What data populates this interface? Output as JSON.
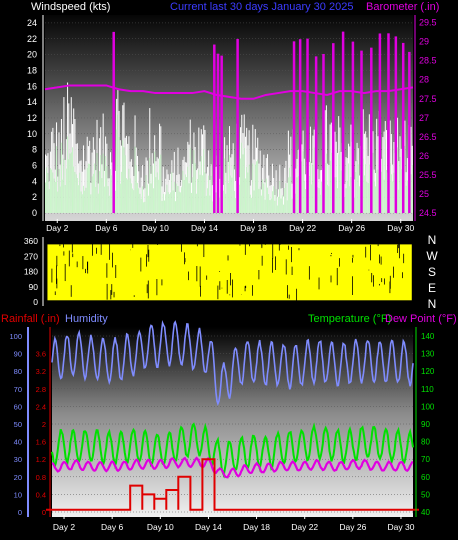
{
  "header": {
    "left": "Windspeed (kts)",
    "center": "Current last 30 days January 30 2025",
    "right": "Barometer (.in)"
  },
  "wind_dir_labels": [
    "N",
    "W",
    "S",
    "E",
    "N"
  ],
  "lower_header": {
    "rainfall": "Rainfall (.in)",
    "humidity": "Humidity",
    "temperature": "Temperature (°F)",
    "dewpoint": "Dew Point (°F)"
  },
  "colors": {
    "background": "#000000",
    "windspeed_gust": "#ffffff",
    "windspeed_avg": "#c8f5c8",
    "barometer": "#e000e0",
    "wind_direction": "#ffff00",
    "rainfall": "#e00000",
    "humidity": "#7f8cff",
    "temperature": "#00e000",
    "dewpoint": "#e000e0",
    "title": "#3c3cff"
  },
  "chart_data": [
    {
      "type": "bar",
      "name": "windspeed-barometer",
      "x_ticks": [
        "Day 2",
        "Day 6",
        "Day 10",
        "Day 14",
        "Day 18",
        "Day 22",
        "Day 26",
        "Day 30"
      ],
      "xlim": [
        1,
        31
      ],
      "ylim": [
        0,
        25
      ],
      "y_ticks": [
        0,
        2,
        4,
        6,
        8,
        10,
        12,
        14,
        16,
        18,
        20,
        22,
        24
      ],
      "y2lim": [
        24.5,
        29.7
      ],
      "y2_ticks": [
        "24.5",
        "25",
        "25.5",
        "26",
        "26.5",
        "27",
        "27.5",
        "28",
        "28.5",
        "29",
        "29.5"
      ],
      "series": [
        {
          "name": "Windspeed",
          "x": [
            1,
            2,
            3,
            4,
            5,
            6,
            7,
            8,
            9,
            10,
            11,
            12,
            13,
            14,
            15,
            16,
            17,
            18,
            19,
            20,
            21,
            22,
            23,
            24,
            25,
            26,
            27,
            28,
            29,
            30,
            31
          ],
          "values": [
            7,
            9,
            12,
            8,
            9,
            9,
            13,
            9,
            6,
            10,
            5,
            6,
            9,
            9,
            6,
            8,
            9,
            8,
            7,
            5,
            8,
            9,
            8,
            10,
            9,
            9,
            10,
            10,
            9,
            9,
            8
          ]
        },
        {
          "name": "Barometer",
          "x": [
            1,
            2,
            3,
            4,
            5,
            6,
            7,
            8,
            9,
            10,
            11,
            12,
            13,
            14,
            15,
            16,
            17,
            18,
            19,
            20,
            21,
            22,
            23,
            24,
            25,
            26,
            27,
            28,
            29,
            30,
            31
          ],
          "values": [
            27.75,
            27.8,
            27.85,
            27.85,
            27.85,
            27.85,
            27.75,
            27.7,
            27.7,
            27.65,
            27.65,
            27.65,
            27.65,
            27.7,
            27.6,
            27.55,
            27.5,
            27.5,
            27.6,
            27.65,
            27.7,
            27.7,
            27.65,
            27.6,
            27.7,
            27.7,
            27.65,
            27.7,
            27.7,
            27.75,
            27.8
          ]
        }
      ]
    },
    {
      "type": "bar",
      "name": "wind-direction",
      "xlim": [
        1,
        31
      ],
      "ylim": [
        0,
        360
      ],
      "y_ticks": [
        0,
        90,
        180,
        270,
        360
      ],
      "note_values": "mostly full 0-360 band of wind direction samples"
    },
    {
      "type": "line",
      "name": "rain-humidity-temp-dew",
      "x_ticks": [
        "Day 2",
        "Day 6",
        "Day 10",
        "Day 14",
        "Day 18",
        "Day 22",
        "Day 26",
        "Day 30"
      ],
      "xlim": [
        1,
        31
      ],
      "left_ticks_rain": [
        "0",
        "0.4",
        "0.8",
        "1.2",
        "1.6",
        "2",
        "2.4",
        "2.8",
        "3.2",
        "3.6"
      ],
      "left_ticks_humidity": [
        0,
        10,
        20,
        30,
        40,
        50,
        60,
        70,
        80,
        90,
        100
      ],
      "right_ticks_temp": [
        40,
        50,
        60,
        70,
        80,
        90,
        100,
        110,
        120,
        130,
        140
      ],
      "series": [
        {
          "name": "Humidity",
          "x": [
            1,
            2,
            3,
            4,
            5,
            6,
            7,
            8,
            9,
            10,
            11,
            12,
            13,
            14,
            15,
            16,
            17,
            18,
            19,
            20,
            21,
            22,
            23,
            24,
            25,
            26,
            27,
            28,
            29,
            30,
            31
          ],
          "values": [
            85,
            88,
            90,
            88,
            87,
            86,
            88,
            90,
            94,
            95,
            96,
            95,
            92,
            90,
            70,
            80,
            86,
            85,
            84,
            84,
            82,
            85,
            86,
            85,
            84,
            85,
            86,
            85,
            86,
            85,
            84
          ]
        },
        {
          "name": "Temperature",
          "x": [
            1,
            2,
            3,
            4,
            5,
            6,
            7,
            8,
            9,
            10,
            11,
            12,
            13,
            14,
            15,
            16,
            17,
            18,
            19,
            20,
            21,
            22,
            23,
            24,
            25,
            26,
            27,
            28,
            29,
            30,
            31
          ],
          "values": [
            75,
            78,
            77,
            78,
            77,
            76,
            77,
            78,
            76,
            75,
            77,
            80,
            82,
            78,
            70,
            72,
            74,
            75,
            74,
            76,
            77,
            78,
            80,
            79,
            77,
            78,
            80,
            79,
            78,
            77,
            76
          ]
        },
        {
          "name": "Dew Point",
          "x": [
            1,
            2,
            3,
            4,
            5,
            6,
            7,
            8,
            9,
            10,
            11,
            12,
            13,
            14,
            15,
            16,
            17,
            18,
            19,
            20,
            21,
            22,
            23,
            24,
            25,
            26,
            27,
            28,
            29,
            30,
            31
          ],
          "values": [
            65,
            66,
            67,
            66,
            66,
            66,
            66,
            67,
            67,
            67,
            68,
            68,
            68,
            68,
            62,
            62,
            64,
            65,
            65,
            66,
            66,
            66,
            67,
            66,
            66,
            67,
            67,
            66,
            66,
            66,
            66
          ]
        },
        {
          "name": "Rainfall",
          "x": [
            1,
            2,
            3,
            4,
            5,
            6,
            7,
            8,
            9,
            10,
            11,
            12,
            13,
            14,
            15,
            16,
            17,
            18,
            19,
            20,
            21,
            22,
            23,
            24,
            25,
            26,
            27,
            28,
            29,
            30,
            31
          ],
          "values": [
            0.05,
            0.05,
            0.05,
            0.1,
            0.05,
            0.05,
            0.05,
            0.6,
            0.4,
            0.3,
            0.5,
            0.8,
            0.1,
            1.2,
            0.05,
            0.05,
            0.05,
            0.05,
            0.05,
            0.05,
            0.05,
            0.05,
            0.05,
            0.05,
            0.05,
            0.05,
            0.05,
            0.05,
            0.05,
            0.05,
            0.05
          ]
        }
      ]
    }
  ]
}
